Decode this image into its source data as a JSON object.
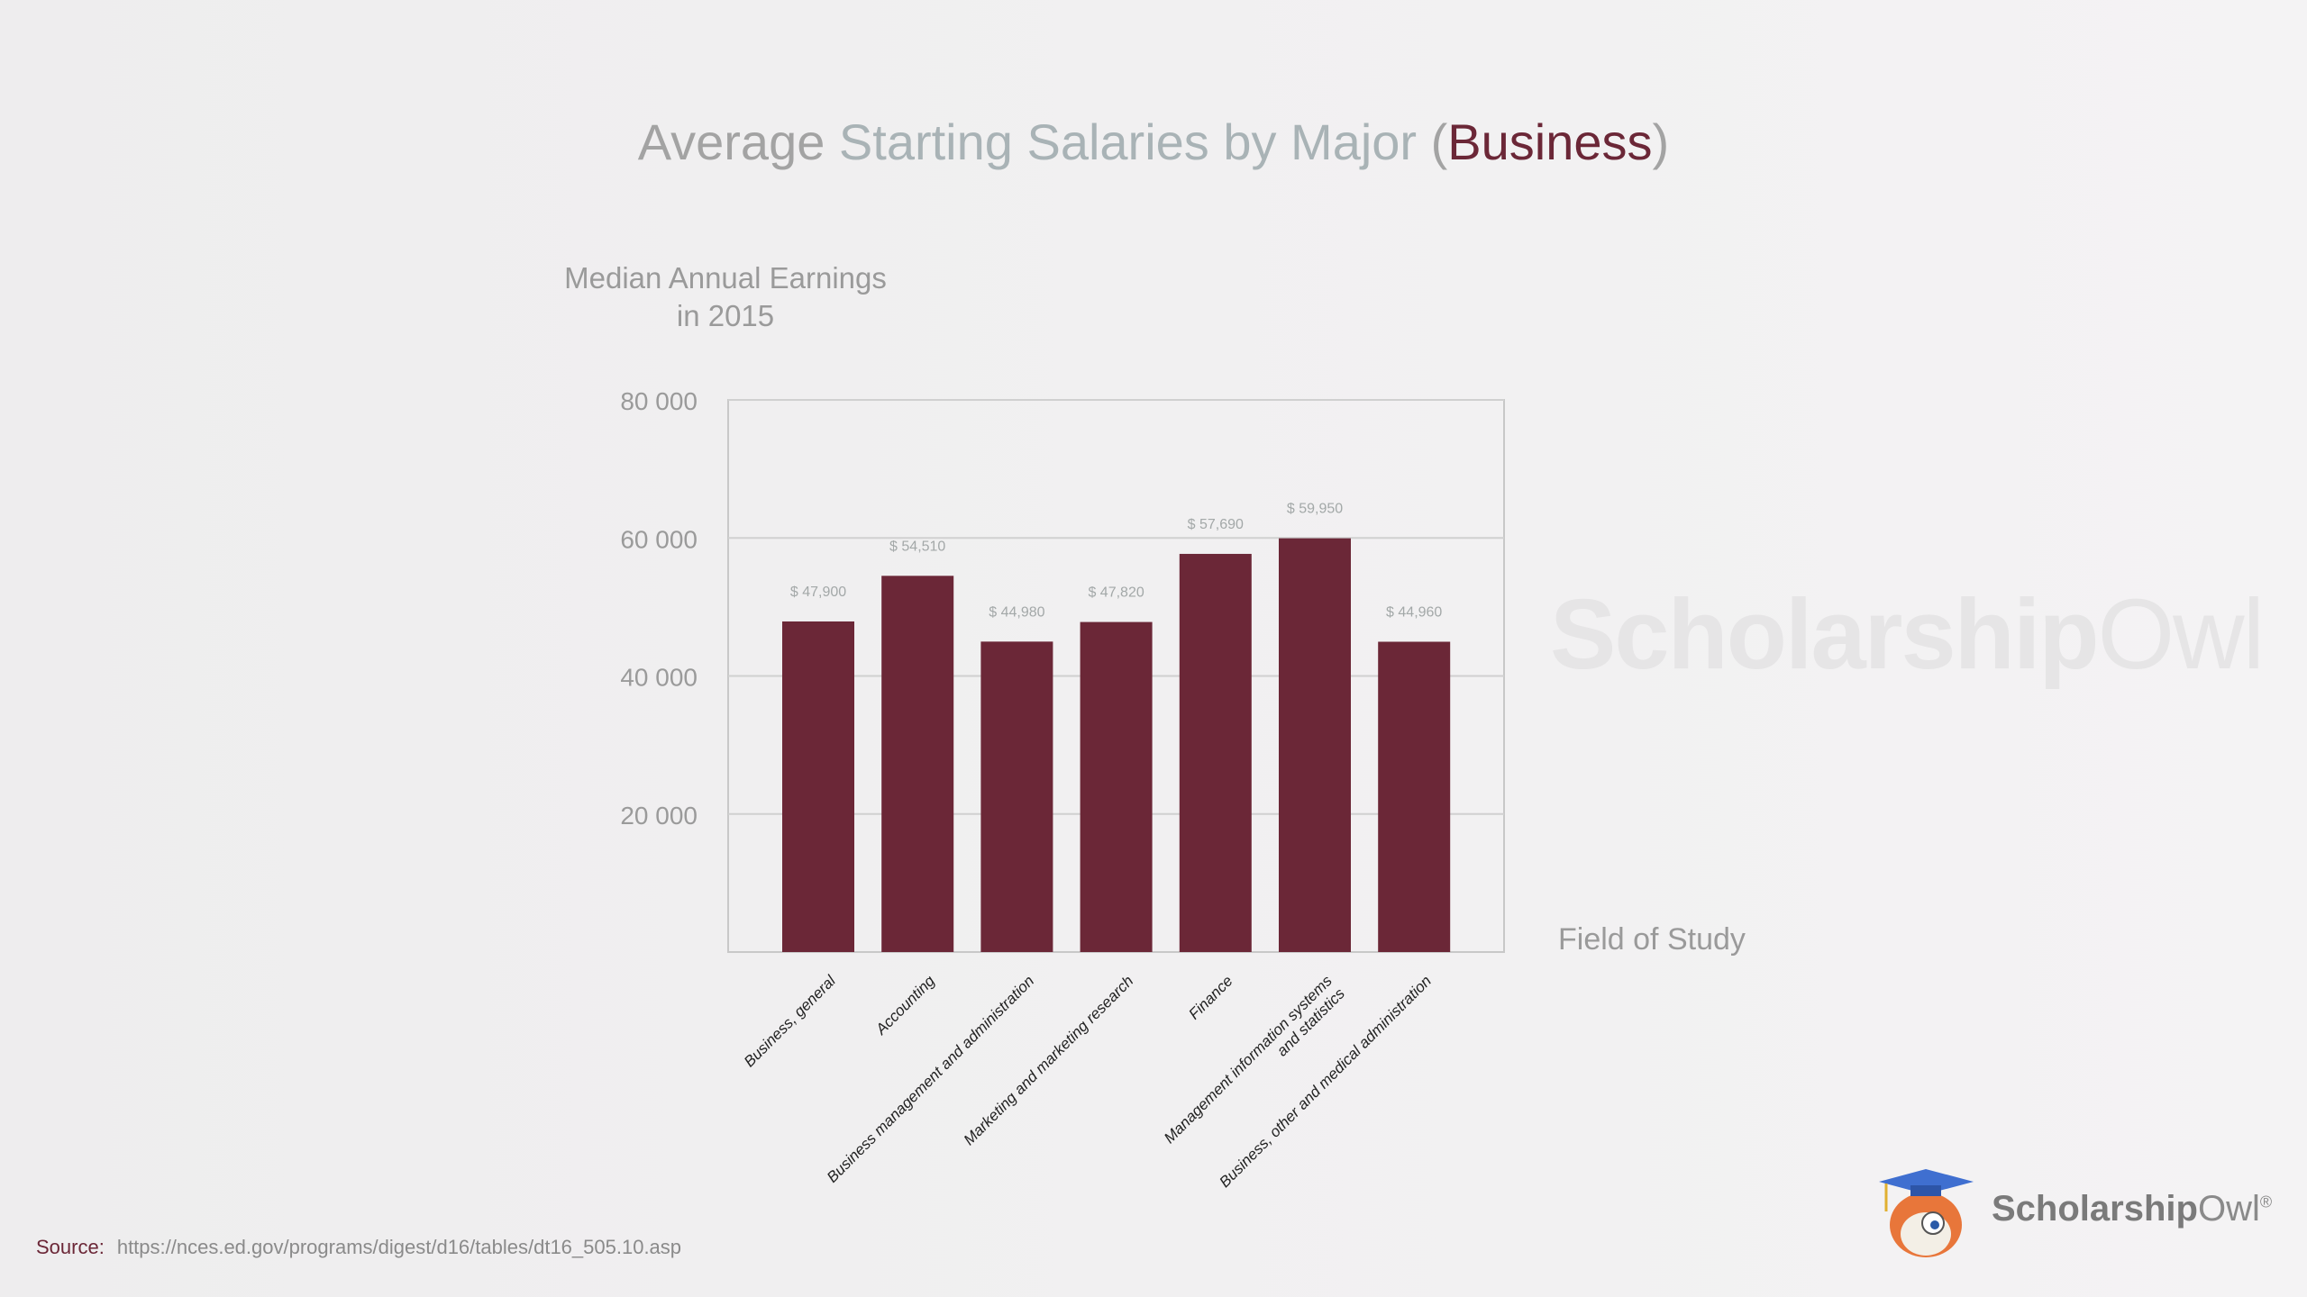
{
  "title": {
    "part1": "Average ",
    "part2": "Starting Salaries by Major",
    "part3": " (",
    "part4": "Business",
    "part5": ")"
  },
  "watermark": {
    "bold": "Scholarship",
    "light": "Owl",
    "mark": "®"
  },
  "colors": {
    "bar": "#6b2737",
    "accent": "#6b2737",
    "grid": "#d0d0d0"
  },
  "chart_data": {
    "type": "bar",
    "ylabel": "Median Annual Earnings in 2015",
    "ylabel_lines": [
      "Median Annual Earnings",
      "in 2015"
    ],
    "xlabel": "Field of Study",
    "ylim": [
      0,
      80000
    ],
    "yticks": [
      20000,
      40000,
      60000,
      80000
    ],
    "ytick_labels": [
      "20 000",
      "40 000",
      "60 000",
      "80 000"
    ],
    "grid": true,
    "categories": [
      "Business, general",
      "Accounting",
      "Business management and administration",
      "Marketing and marketing research",
      "Finance",
      "Management information systems and statistics",
      "Business, other and medical administration"
    ],
    "values": [
      47900,
      54510,
      44980,
      47820,
      57690,
      59950,
      44960
    ],
    "data_labels": [
      "$ 47,900",
      "$ 54,510",
      "$ 44,980",
      "$ 47,820",
      "$ 57,690",
      "$ 59,950",
      "$ 44,960"
    ]
  },
  "source": {
    "label": "Source:",
    "url": "https://nces.ed.gov/programs/digest/d16/tables/dt16_505.10.asp"
  },
  "logo": {
    "bold": "Scholarship",
    "light": "Owl",
    "mark": "®"
  }
}
